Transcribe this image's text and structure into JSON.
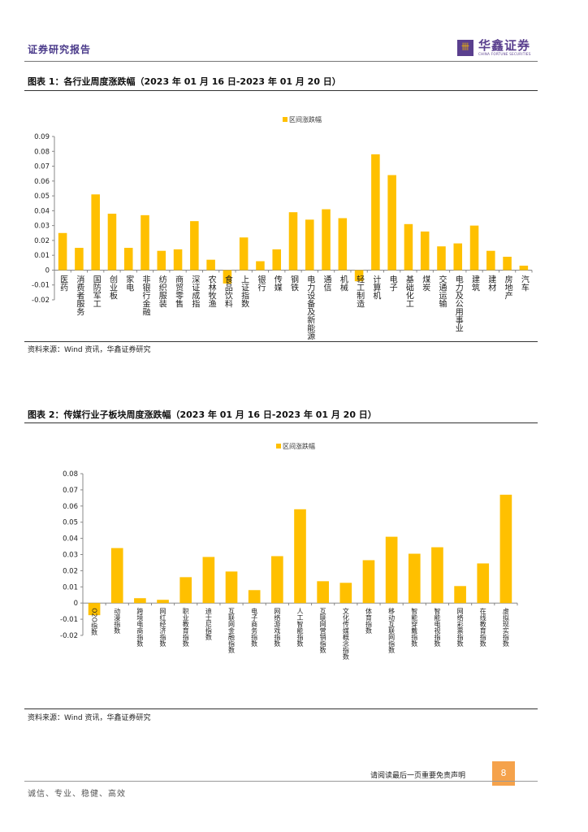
{
  "header": {
    "title": "证券研究报告",
    "logo_cn": "华鑫证券",
    "logo_en": "CHINA FORTUNE SECURITIES"
  },
  "colors": {
    "bar": "#FFC000",
    "brand": "#5a3f8e",
    "page_badge": "#f5a24b"
  },
  "figures": [
    {
      "title": "图表 1：各行业周度涨跌幅（2023 年 01 月 16 日-2023 年 01 月 20 日）",
      "source": "资料来源：Wind 资讯，华鑫证券研究"
    },
    {
      "title": "图表 2：传媒行业子板块周度涨跌幅（2023 年 01 月 16 日-2023 年 01 月 20 日）",
      "source": "资料来源：Wind 资讯，华鑫证券研究"
    }
  ],
  "chart_data": [
    {
      "type": "bar",
      "legend": "区间涨跌幅",
      "legend_position": "top",
      "ylim": [
        -0.02,
        0.09
      ],
      "yticks": [
        "0.09",
        "0.08",
        "0.07",
        "0.06",
        "0.05",
        "0.04",
        "0.03",
        "0.02",
        "0.01",
        "0",
        "-0.01",
        "-0.02"
      ],
      "categories": [
        "医药",
        "消费者服务",
        "国防军工",
        "创业板",
        "家电",
        "非银行金融",
        "纺织服装",
        "商贸零售",
        "深证成指",
        "农林牧渔",
        "食品饮料",
        "上证指数",
        "银行",
        "传媒",
        "钢铁",
        "电力设备及新能源",
        "通信",
        "机械",
        "轻工制造",
        "计算机",
        "电子",
        "基础化工",
        "煤炭",
        "交通运输",
        "电力及公用事业",
        "建筑",
        "建材",
        "房地产",
        "汽车"
      ],
      "values": [
        0.025,
        0.015,
        0.051,
        0.038,
        0.015,
        0.037,
        0.013,
        0.014,
        0.033,
        0.007,
        -0.009,
        0.022,
        0.006,
        0.014,
        0.039,
        0.034,
        0.041,
        0.035,
        -0.0075,
        0.078,
        0.064,
        0.031,
        0.026,
        0.016,
        0.018,
        0.03,
        0.013,
        0.009,
        0.003
      ]
    },
    {
      "type": "bar",
      "legend": "区间涨跌幅",
      "legend_position": "top",
      "ylim": [
        -0.02,
        0.08
      ],
      "yticks": [
        "0.08",
        "0.07",
        "0.06",
        "0.05",
        "0.04",
        "0.03",
        "0.02",
        "0.01",
        "0",
        "-0.01",
        "-0.02"
      ],
      "categories": [
        "O2O指数",
        "动漫指数",
        "跨境电商指数",
        "网红经济指数",
        "职业教育指数",
        "迪士尼指数",
        "互联网金融指数",
        "电子商务指数",
        "网络游戏指数",
        "人工智能指数",
        "互联网营销指数",
        "文化传媒概念指数",
        "体育指数",
        "移动互联网指数",
        "智能穿戴指数",
        "智能电视指数",
        "网络彩票指数",
        "在线教育指数",
        "虚拟现实指数"
      ],
      "values": [
        -0.0075,
        0.034,
        0.003,
        0.002,
        0.016,
        0.0285,
        0.0195,
        0.008,
        0.029,
        0.058,
        0.0135,
        0.0125,
        0.0265,
        0.041,
        0.0305,
        0.0345,
        0.0105,
        0.0245,
        0.067
      ]
    }
  ],
  "footer": {
    "notice": "请阅读最后一页重要免责声明",
    "page": "8",
    "motto": "诚信、专业、稳健、高效"
  }
}
